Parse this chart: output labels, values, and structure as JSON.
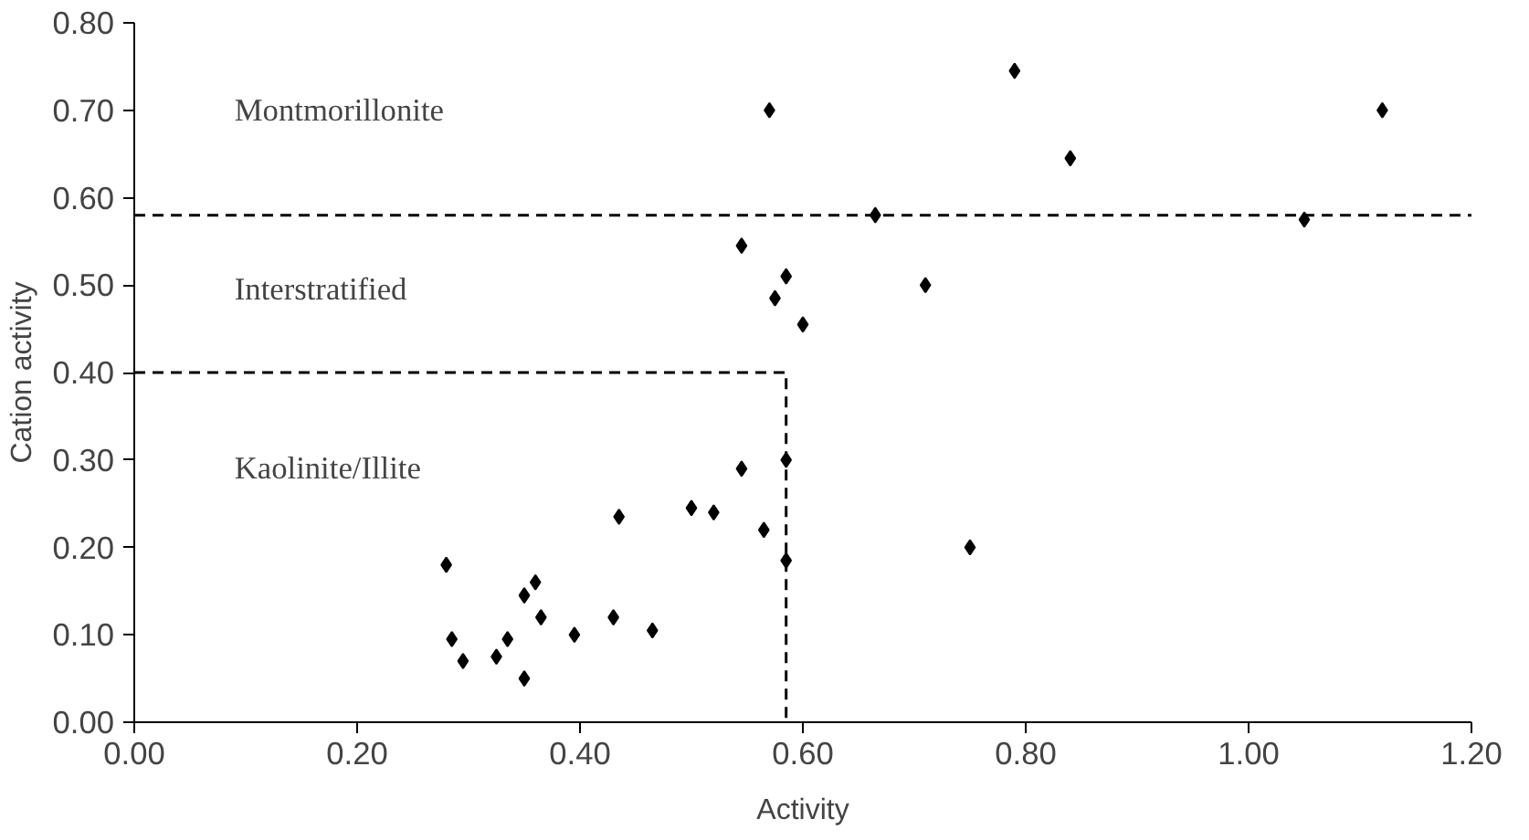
{
  "chart_data": {
    "type": "scatter",
    "xlabel": "Activity",
    "ylabel": "Cation activity",
    "xlim": [
      0,
      1.2
    ],
    "ylim": [
      0,
      0.8
    ],
    "xticks": [
      {
        "value": 0,
        "label": "0.00"
      },
      {
        "value": 0.2,
        "label": "0.20"
      },
      {
        "value": 0.4,
        "label": "0.40"
      },
      {
        "value": 0.6,
        "label": "0.60"
      },
      {
        "value": 0.8,
        "label": "0.80"
      },
      {
        "value": 1.0,
        "label": "1.00"
      },
      {
        "value": 1.2,
        "label": "1.20"
      }
    ],
    "yticks": [
      {
        "value": 0,
        "label": "0.00"
      },
      {
        "value": 0.1,
        "label": "0.10"
      },
      {
        "value": 0.2,
        "label": "0.20"
      },
      {
        "value": 0.3,
        "label": "0.30"
      },
      {
        "value": 0.4,
        "label": "0.40"
      },
      {
        "value": 0.5,
        "label": "0.50"
      },
      {
        "value": 0.6,
        "label": "0.60"
      },
      {
        "value": 0.7,
        "label": "0.70"
      },
      {
        "value": 0.8,
        "label": "0.80"
      }
    ],
    "grid": false,
    "series": [
      {
        "marker": "diamond",
        "color": "#000000",
        "x": [
          0.28,
          0.285,
          0.295,
          0.325,
          0.335,
          0.35,
          0.35,
          0.36,
          0.365,
          0.395,
          0.43,
          0.435,
          0.465,
          0.5,
          0.52,
          0.545,
          0.565,
          0.585,
          0.585,
          0.545,
          0.575,
          0.585,
          0.6,
          0.57,
          0.665,
          0.71,
          0.75,
          0.79,
          0.84,
          1.05,
          1.12
        ],
        "values": [
          0.18,
          0.095,
          0.07,
          0.075,
          0.095,
          0.05,
          0.145,
          0.16,
          0.12,
          0.1,
          0.12,
          0.235,
          0.105,
          0.245,
          0.24,
          0.29,
          0.22,
          0.3,
          0.185,
          0.545,
          0.485,
          0.51,
          0.455,
          0.7,
          0.58,
          0.5,
          0.2,
          0.745,
          0.645,
          0.575,
          0.7
        ]
      },
      {
        "type": "line",
        "marker": "none",
        "color": "#000000",
        "line_style": "dashed",
        "x": [
          0,
          0.585,
          0.585
        ],
        "values": [
          0.4,
          0.4,
          0
        ]
      }
    ],
    "ref_lines": [
      {
        "axis": "y",
        "value": 0.58,
        "color": "#000000",
        "line_style": "dashed"
      }
    ],
    "annotations": [
      "Montmorillonite",
      "Interstratified",
      "Kaolinite/Illite"
    ]
  }
}
